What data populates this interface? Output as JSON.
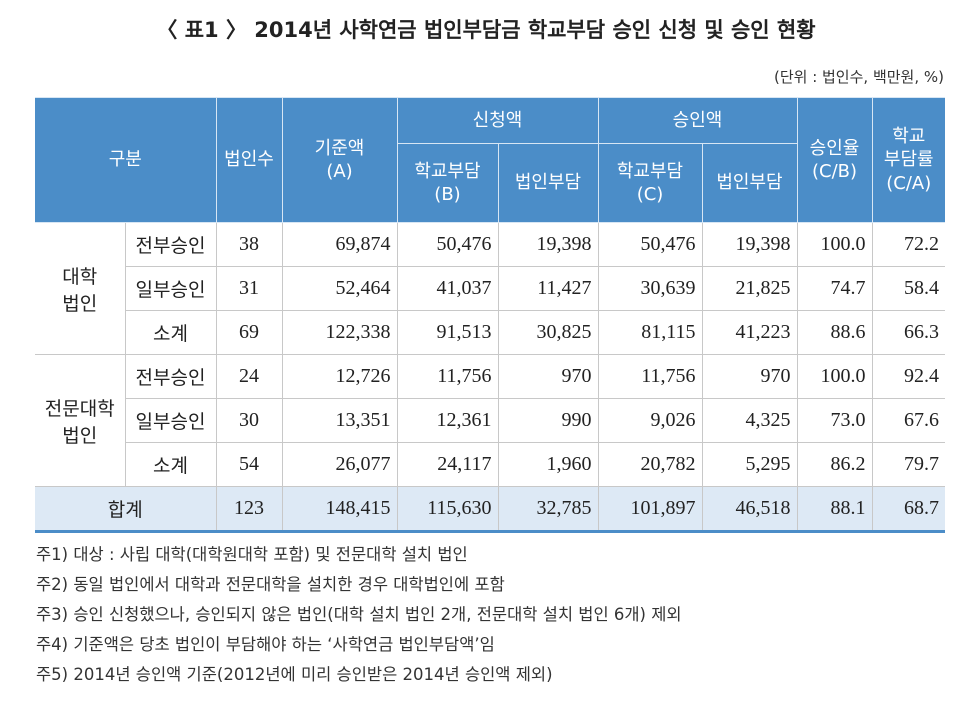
{
  "title": "〈 표1 〉 2014년 사학연금 법인부담금 학교부담 승인 신청 및 승인 현황",
  "unit": "(단위 : 법인수, 백만원, %)",
  "table": {
    "header": {
      "group": "구분",
      "count": "법인수",
      "base": "기준액\n(A)",
      "applied": "신청액",
      "approved": "승인액",
      "rate": "승인율\n(C/B)",
      "school_rate": "학교\n부담률\n(C/A)",
      "applied_school": "학교부담\n(B)",
      "applied_corp": "법인부담",
      "approved_school": "학교부담\n(C)",
      "approved_corp": "법인부담"
    },
    "groups": [
      {
        "label": "대학\n법인",
        "rows": [
          {
            "label": "전부승인",
            "values": [
              "38",
              "69,874",
              "50,476",
              "19,398",
              "50,476",
              "19,398",
              "100.0",
              "72.2"
            ]
          },
          {
            "label": "일부승인",
            "values": [
              "31",
              "52,464",
              "41,037",
              "11,427",
              "30,639",
              "21,825",
              "74.7",
              "58.4"
            ]
          },
          {
            "label": "소계",
            "values": [
              "69",
              "122,338",
              "91,513",
              "30,825",
              "81,115",
              "41,223",
              "88.6",
              "66.3"
            ]
          }
        ]
      },
      {
        "label": "전문대학\n법인",
        "rows": [
          {
            "label": "전부승인",
            "values": [
              "24",
              "12,726",
              "11,756",
              "970",
              "11,756",
              "970",
              "100.0",
              "92.4"
            ]
          },
          {
            "label": "일부승인",
            "values": [
              "30",
              "13,351",
              "12,361",
              "990",
              "9,026",
              "4,325",
              "73.0",
              "67.6"
            ]
          },
          {
            "label": "소계",
            "values": [
              "54",
              "26,077",
              "24,117",
              "1,960",
              "20,782",
              "5,295",
              "86.2",
              "79.7"
            ]
          }
        ]
      }
    ],
    "total": {
      "label": "합계",
      "values": [
        "123",
        "148,415",
        "115,630",
        "32,785",
        "101,897",
        "46,518",
        "88.1",
        "68.7"
      ]
    }
  },
  "notes": [
    "주1) 대상 : 사립 대학(대학원대학 포함) 및 전문대학 설치 법인",
    "주2) 동일 법인에서 대학과 전문대학을 설치한 경우 대학법인에 포함",
    "주3) 승인 신청했으나, 승인되지 않은 법인(대학 설치 법인 2개, 전문대학 설치 법인 6개) 제외",
    "주4) 기준액은 당초 법인이 부담해야 하는 ‘사학연금 법인부담액’임",
    "주5) 2014년 승인액 기준(2012년에 미리 승인받은 2014년 승인액 제외)"
  ]
}
